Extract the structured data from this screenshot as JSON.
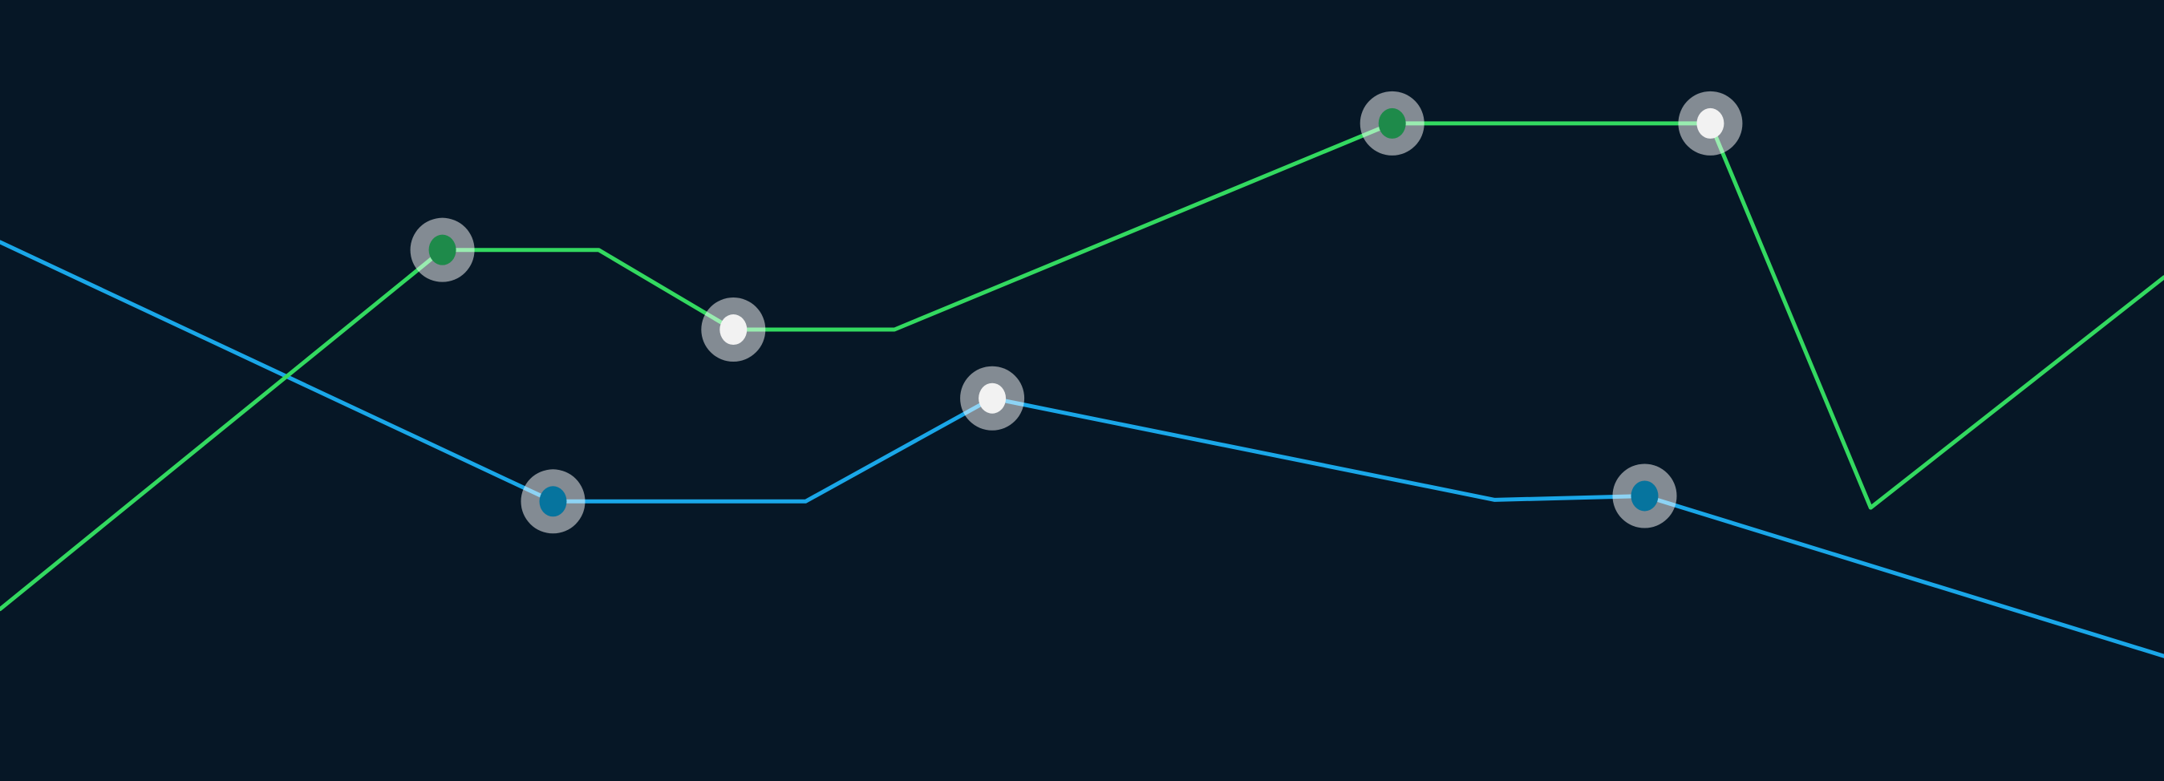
{
  "theme": {
    "background": "#061726"
  },
  "chart_data": {
    "type": "line",
    "title": "",
    "xlabel": "",
    "ylabel": "",
    "grid": false,
    "legend": "none",
    "xlim": [
      0,
      27
    ],
    "ylim": [
      0,
      10
    ],
    "series": [
      {
        "key": "blue",
        "color": "#1aa7e8",
        "x": [
          0,
          6.9,
          10.05,
          12.38,
          18.65,
          20.52,
          27
        ],
        "y": [
          6.9,
          3.58,
          3.58,
          4.9,
          3.6,
          3.65,
          1.6
        ],
        "markers": [
          {
            "index": 1,
            "fill": "#06749e"
          },
          {
            "index": 3,
            "fill": "#f2f2f2"
          },
          {
            "index": 5,
            "fill": "#06749e"
          }
        ]
      },
      {
        "key": "green",
        "color": "#33d960",
        "x": [
          0,
          5.52,
          7.47,
          9.15,
          11.16,
          17.37,
          21.34,
          23.34,
          27
        ],
        "y": [
          2.2,
          6.8,
          6.8,
          5.78,
          5.78,
          8.42,
          8.42,
          3.5,
          6.45
        ],
        "markers": [
          {
            "index": 1,
            "fill": "#1e8a4a"
          },
          {
            "index": 3,
            "fill": "#f2f2f2"
          },
          {
            "index": 5,
            "fill": "#1e8a4a"
          },
          {
            "index": 6,
            "fill": "#f2f2f2"
          }
        ]
      }
    ]
  }
}
